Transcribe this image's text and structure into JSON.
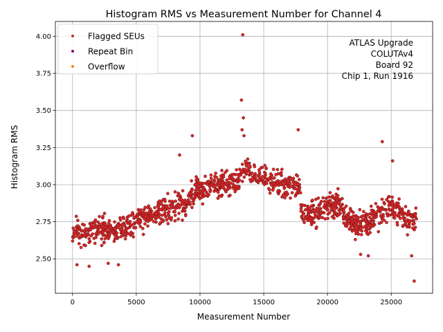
{
  "chart_data": {
    "type": "scatter",
    "title": "Histogram RMS vs Measurement Number for Channel 4",
    "xlabel": "Measurement Number",
    "ylabel": "Histogram RMS",
    "xlim": [
      -1345,
      28245
    ],
    "ylim": [
      2.268,
      4.1
    ],
    "xticks": [
      0,
      5000,
      10000,
      15000,
      20000,
      25000
    ],
    "yticks": [
      2.5,
      2.75,
      3.0,
      3.25,
      3.5,
      3.75,
      4.0
    ],
    "grid": true,
    "legend": {
      "placement": "top-left",
      "entries": [
        {
          "label": "Flagged SEUs",
          "color": "#d62728"
        },
        {
          "label": "Repeat Bin",
          "color": "#800080"
        },
        {
          "label": "Overflow",
          "color": "#ff7f0e"
        }
      ]
    },
    "annotation": {
      "placement": "top-right",
      "lines": [
        "ATLAS Upgrade",
        "COLUTAv4",
        "Board 92",
        "Chip 1, Run 1916"
      ]
    },
    "series": [
      {
        "name": "Flagged SEUs",
        "color": "#d62728",
        "edge_color": "#6b1414",
        "n_points": 1300,
        "trend": [
          [
            0,
            2.67
          ],
          [
            2000,
            2.7
          ],
          [
            4000,
            2.7
          ],
          [
            5000,
            2.76
          ],
          [
            6000,
            2.8
          ],
          [
            7000,
            2.82
          ],
          [
            8000,
            2.84
          ],
          [
            9000,
            2.87
          ],
          [
            9700,
            2.98
          ],
          [
            11000,
            2.99
          ],
          [
            12000,
            3.0
          ],
          [
            13000,
            3.02
          ],
          [
            13500,
            3.12
          ],
          [
            14000,
            3.08
          ],
          [
            15000,
            3.05
          ],
          [
            16000,
            3.0
          ],
          [
            17000,
            3.0
          ],
          [
            17800,
            2.99
          ],
          [
            18000,
            2.8
          ],
          [
            19000,
            2.8
          ],
          [
            20000,
            2.86
          ],
          [
            21000,
            2.85
          ],
          [
            22000,
            2.73
          ],
          [
            23000,
            2.74
          ],
          [
            24000,
            2.8
          ],
          [
            25000,
            2.84
          ],
          [
            26000,
            2.78
          ],
          [
            27000,
            2.74
          ]
        ],
        "spread": 0.075,
        "outliers": [
          {
            "x": 13350,
            "y": 4.01
          },
          {
            "x": 13250,
            "y": 3.57
          },
          {
            "x": 13400,
            "y": 3.45
          },
          {
            "x": 13300,
            "y": 3.37
          },
          {
            "x": 13450,
            "y": 3.33
          },
          {
            "x": 9400,
            "y": 3.33
          },
          {
            "x": 24300,
            "y": 3.29
          },
          {
            "x": 17700,
            "y": 3.37
          },
          {
            "x": 25100,
            "y": 3.16
          },
          {
            "x": 8400,
            "y": 3.2
          },
          {
            "x": 26800,
            "y": 2.35
          },
          {
            "x": 26600,
            "y": 2.52
          },
          {
            "x": 350,
            "y": 2.46
          },
          {
            "x": 1300,
            "y": 2.45
          },
          {
            "x": 3600,
            "y": 2.46
          },
          {
            "x": 2800,
            "y": 2.47
          },
          {
            "x": 23200,
            "y": 2.52
          },
          {
            "x": 22600,
            "y": 2.53
          }
        ]
      },
      {
        "name": "Repeat Bin",
        "color": "#800080",
        "n_points": 0
      },
      {
        "name": "Overflow",
        "color": "#ff7f0e",
        "n_points": 0
      }
    ]
  }
}
